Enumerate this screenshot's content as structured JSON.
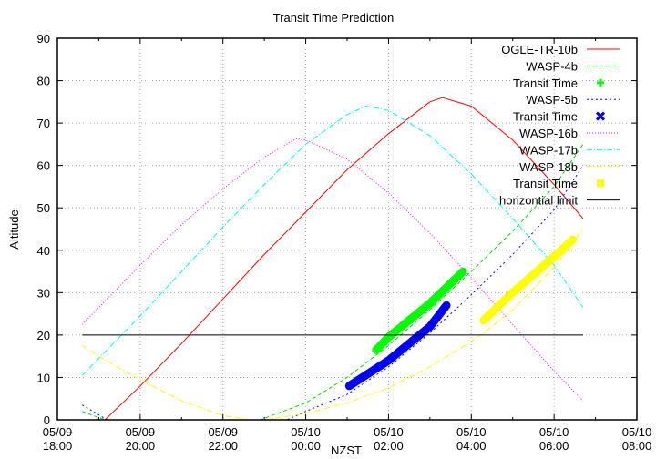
{
  "chart_data": {
    "type": "line",
    "title": "Transit Time Prediction",
    "xlabel": "NZST",
    "ylabel": "Altitude",
    "ylim": [
      0,
      90
    ],
    "yticks": [
      0,
      10,
      20,
      30,
      40,
      50,
      60,
      70,
      80,
      90
    ],
    "xlim_hours_from_0509_1800": [
      0,
      14
    ],
    "xticks": [
      {
        "h": 0,
        "date": "05/09",
        "time": "18:00"
      },
      {
        "h": 2,
        "date": "05/09",
        "time": "20:00"
      },
      {
        "h": 4,
        "date": "05/09",
        "time": "22:00"
      },
      {
        "h": 6,
        "date": "05/10",
        "time": "00:00"
      },
      {
        "h": 8,
        "date": "05/10",
        "time": "02:00"
      },
      {
        "h": 10,
        "date": "05/10",
        "time": "04:00"
      },
      {
        "h": 12,
        "date": "05/10",
        "time": "06:00"
      },
      {
        "h": 14,
        "date": "05/10",
        "time": "08:00"
      }
    ],
    "grid": true,
    "legend_position": "top-right",
    "series": [
      {
        "name": "OGLE-TR-10b",
        "color": "#ff0000",
        "style": "solid",
        "x": [
          0.6,
          1.15,
          2,
          3,
          4,
          5,
          6,
          7,
          8,
          9,
          9.3,
          10,
          11,
          12,
          12.7
        ],
        "y": [
          0,
          0,
          8,
          18,
          28.5,
          39,
          49,
          59,
          67.5,
          75,
          76,
          74,
          66,
          55.5,
          47.5
        ]
      },
      {
        "name": "WASP-4b",
        "color": "#00dd00",
        "style": "dashed",
        "x": [
          0.6,
          1.0,
          1.2,
          2,
          3,
          4,
          4.9,
          6,
          7,
          8,
          9,
          10,
          11,
          12,
          12.7
        ],
        "y": [
          2,
          0.5,
          0,
          0,
          0,
          0,
          0,
          4,
          10,
          17.5,
          26,
          35,
          44.5,
          55,
          65
        ]
      },
      {
        "name": "Transit Time",
        "color": "#00ff00",
        "style": "thick",
        "marker": "plus",
        "x": [
          7.7,
          8,
          9,
          9.8
        ],
        "y": [
          16.5,
          19.5,
          27.5,
          35
        ]
      },
      {
        "name": "WASP-5b",
        "color": "#0000ff",
        "style": "dotted",
        "x": [
          0.6,
          1.2,
          2,
          3,
          4,
          5,
          5.55,
          6,
          7,
          8,
          9,
          10,
          11,
          12,
          12.7
        ],
        "y": [
          3.5,
          0,
          0,
          0,
          0,
          0,
          0,
          2,
          6,
          12.5,
          20.5,
          29.5,
          39,
          49.5,
          60
        ]
      },
      {
        "name": "Transit Time",
        "color": "#0000ff",
        "style": "thick",
        "marker": "cross",
        "x": [
          7.05,
          8,
          9,
          9.4
        ],
        "y": [
          8,
          14,
          22,
          27
        ]
      },
      {
        "name": "WASP-16b",
        "color": "#ff00ff",
        "style": "dotted",
        "x": [
          0.6,
          1,
          2,
          3,
          4,
          5,
          5.77,
          6,
          7,
          8,
          9,
          10,
          11,
          12,
          12.7
        ],
        "y": [
          22.5,
          26.5,
          36.5,
          46,
          54.5,
          62,
          66.3,
          66,
          61.5,
          53.5,
          44,
          33.5,
          22.5,
          11.5,
          4.5
        ]
      },
      {
        "name": "WASP-17b",
        "color": "#00ffff",
        "style": "dash-dot",
        "x": [
          0.6,
          1,
          2,
          3,
          4,
          5,
          6,
          7,
          7.46,
          8,
          9,
          10,
          11,
          12,
          12.7
        ],
        "y": [
          10.5,
          14.5,
          24.5,
          35,
          45.5,
          55.5,
          65,
          72,
          74,
          73,
          67,
          58,
          47.5,
          36.5,
          26.5
        ]
      },
      {
        "name": "WASP-18b",
        "color": "#ffff00",
        "style": "dash-dot",
        "x": [
          0.6,
          1,
          2,
          3,
          4,
          4.67,
          5,
          6,
          7,
          8,
          9,
          10,
          10.3,
          11,
          12,
          12.7
        ],
        "y": [
          17.5,
          15,
          9.5,
          4.5,
          1,
          0,
          0,
          1.5,
          4,
          7.5,
          12.5,
          18.5,
          20.5,
          26,
          36,
          45
        ]
      },
      {
        "name": "Transit Time",
        "color": "#ffff00",
        "style": "thick",
        "marker": "square",
        "x": [
          10.3,
          11,
          12,
          12.45
        ],
        "y": [
          23.5,
          30,
          38.5,
          42.5
        ]
      },
      {
        "name": "horizontial limit",
        "color": "#000000",
        "style": "solid",
        "x": [
          0.6,
          12.7
        ],
        "y": [
          20,
          20
        ]
      }
    ]
  },
  "legend": [
    {
      "label": "OGLE-TR-10b",
      "color": "#ff0000",
      "kind": "line",
      "dash": ""
    },
    {
      "label": "WASP-4b",
      "color": "#00dd00",
      "kind": "line",
      "dash": "4,3"
    },
    {
      "label": "Transit Time",
      "color": "#00ff00",
      "kind": "plus",
      "dash": ""
    },
    {
      "label": "WASP-5b",
      "color": "#0000ff",
      "kind": "line",
      "dash": "2,3"
    },
    {
      "label": "Transit Time",
      "color": "#0000ff",
      "kind": "cross",
      "dash": ""
    },
    {
      "label": "WASP-16b",
      "color": "#ff00ff",
      "kind": "line",
      "dash": "1,2"
    },
    {
      "label": "WASP-17b",
      "color": "#00ffff",
      "kind": "line",
      "dash": "6,2,1,2"
    },
    {
      "label": "WASP-18b",
      "color": "#ffff00",
      "kind": "line",
      "dash": "6,2,1,2"
    },
    {
      "label": "Transit Time",
      "color": "#ffff00",
      "kind": "square",
      "dash": ""
    },
    {
      "label": "horizontial limit",
      "color": "#000000",
      "kind": "line",
      "dash": ""
    }
  ]
}
